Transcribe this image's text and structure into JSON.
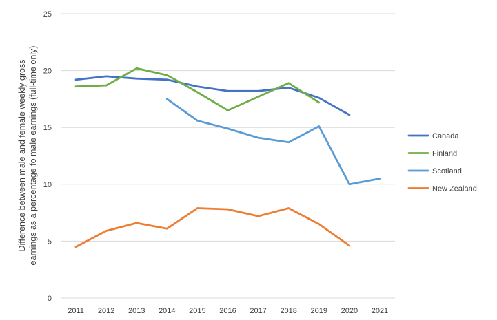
{
  "chart_data": {
    "type": "line",
    "title": "",
    "xlabel": "",
    "ylabel_lines": [
      "Difference between male and female weekly gross",
      "earnings as a percentage fo male earnings (full-time only)"
    ],
    "x": [
      "2011",
      "2012",
      "2013",
      "2014",
      "2015",
      "2016",
      "2017",
      "2018",
      "2019",
      "2020",
      "2021"
    ],
    "ylim": [
      0,
      25
    ],
    "yticks": [
      0,
      5,
      10,
      15,
      20,
      25
    ],
    "grid": true,
    "legend_position": "right",
    "series": [
      {
        "name": "Canada",
        "color": "#4472C4",
        "values": [
          19.2,
          19.5,
          19.3,
          19.2,
          18.6,
          18.2,
          18.2,
          18.5,
          17.6,
          16.1,
          null
        ]
      },
      {
        "name": "Finland",
        "color": "#70AD47",
        "values": [
          18.6,
          18.7,
          20.2,
          19.6,
          18.1,
          16.5,
          17.7,
          18.9,
          17.2,
          null,
          null
        ]
      },
      {
        "name": "Scotland",
        "color": "#5B9BD5",
        "values": [
          null,
          null,
          null,
          17.5,
          15.6,
          14.9,
          14.1,
          13.7,
          15.1,
          10.0,
          10.5
        ]
      },
      {
        "name": "New Zealand",
        "color": "#ED7D31",
        "values": [
          4.5,
          5.9,
          6.6,
          6.1,
          7.9,
          7.8,
          7.2,
          7.9,
          6.5,
          4.6,
          null
        ]
      }
    ]
  }
}
